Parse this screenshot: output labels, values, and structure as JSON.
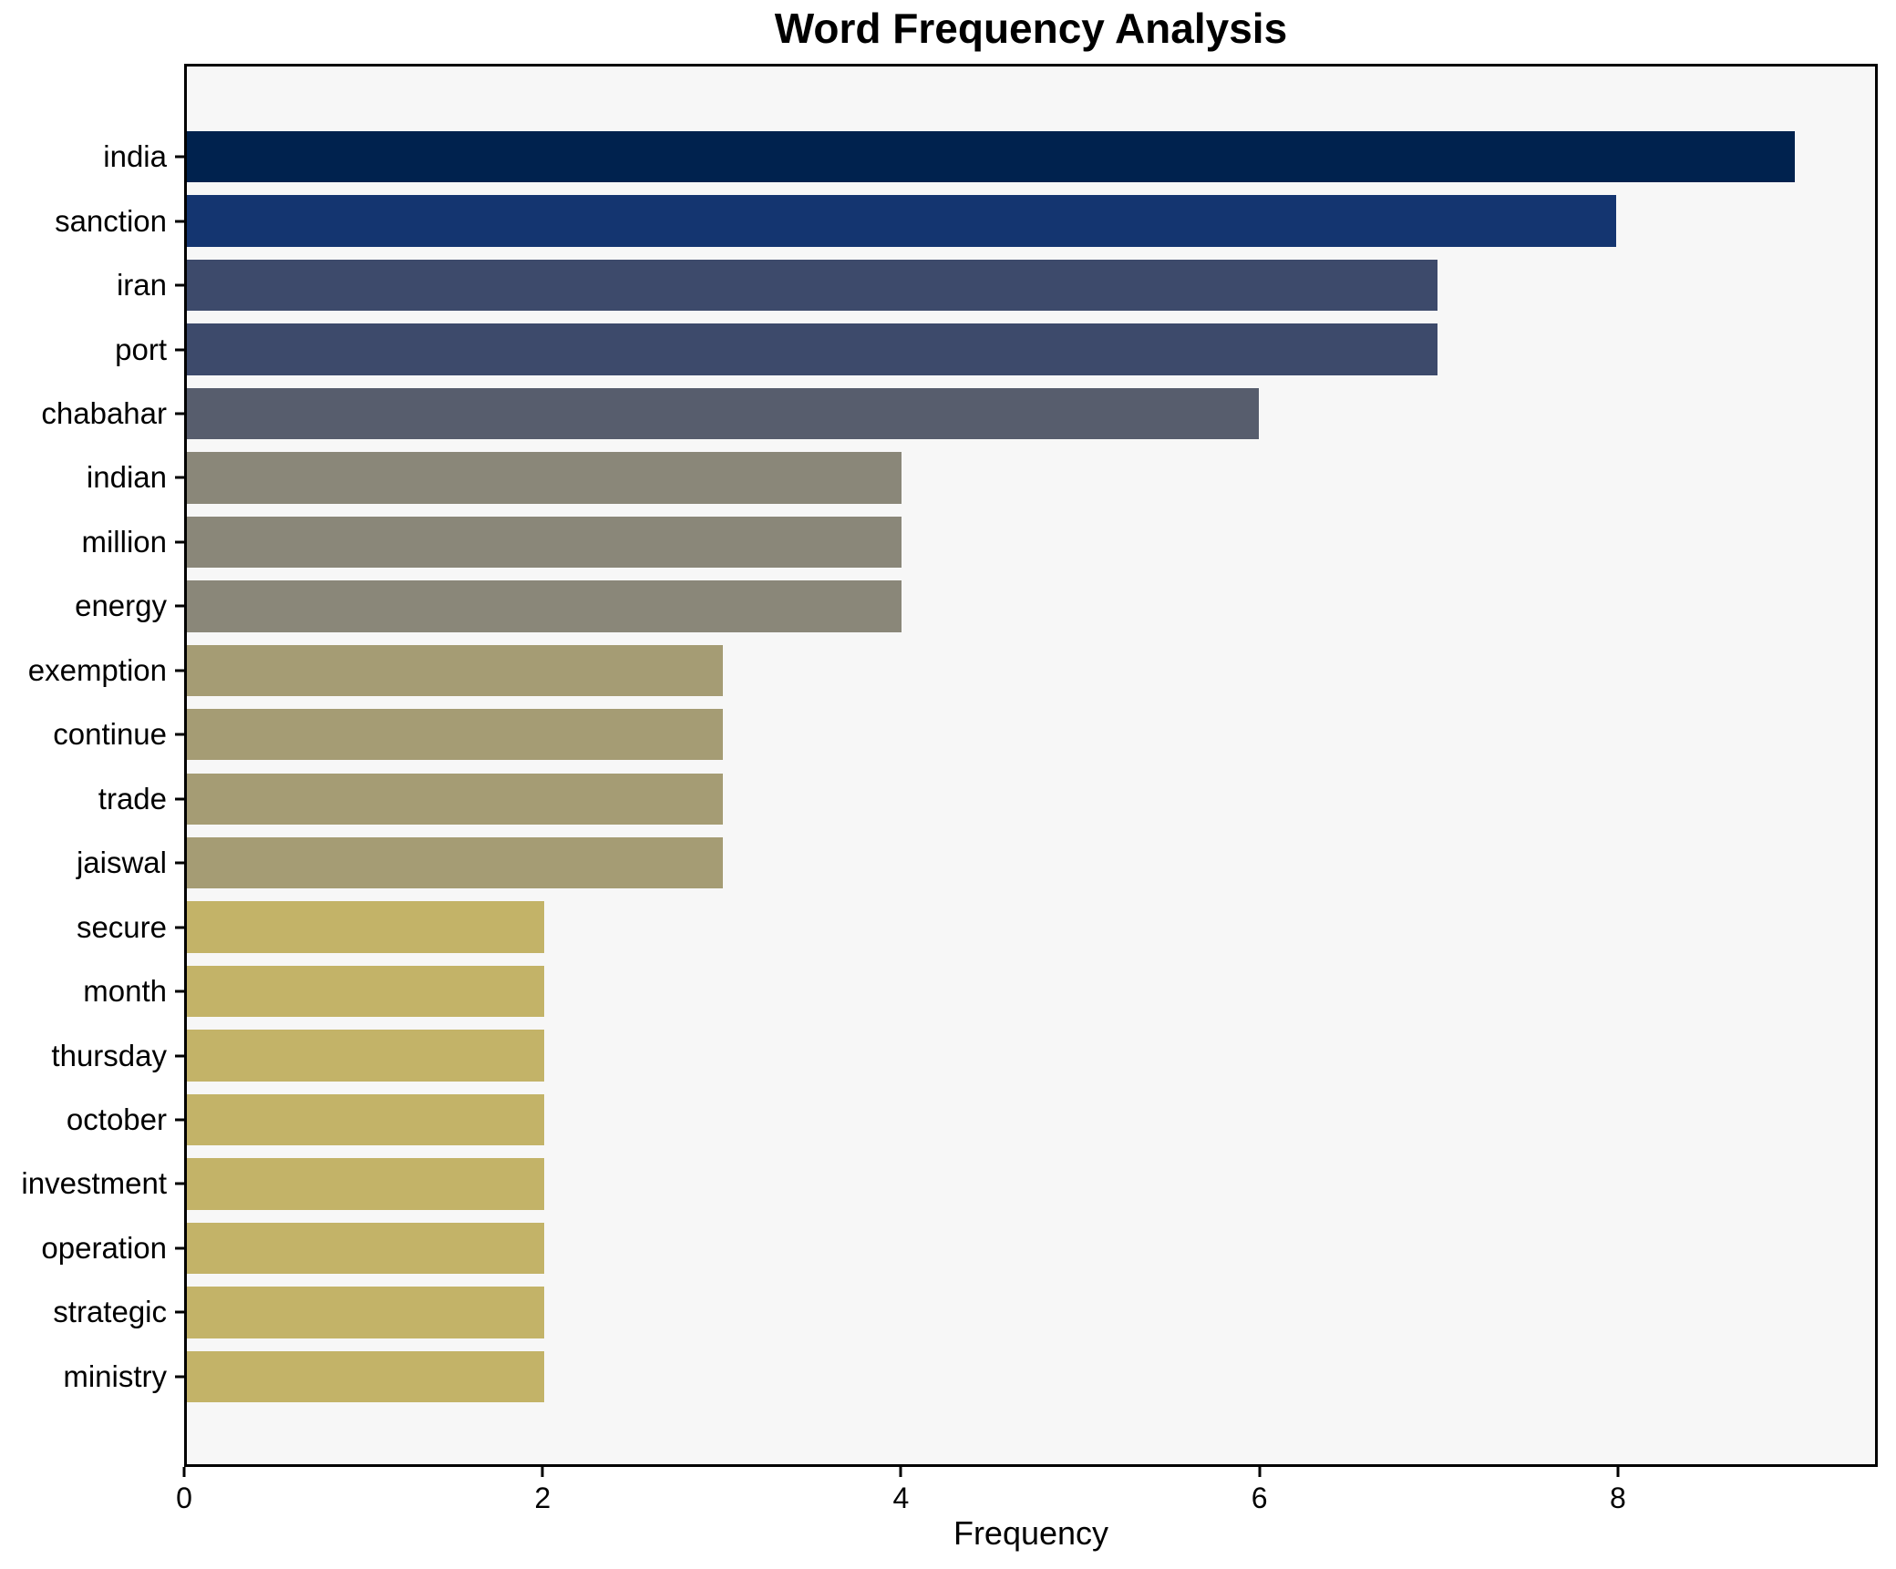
{
  "title": "Word Frequency Analysis",
  "xlabel": "Frequency",
  "colors": {
    "figure_bg": "#ffffff",
    "axes_bg": "#f7f7f7",
    "spine": "#000000",
    "text": "#000000"
  },
  "chart_data": {
    "type": "bar",
    "orientation": "horizontal",
    "title": "Word Frequency Analysis",
    "xlabel": "Frequency",
    "ylabel": "",
    "categories": [
      "india",
      "sanction",
      "iran",
      "port",
      "chabahar",
      "indian",
      "million",
      "energy",
      "exemption",
      "continue",
      "trade",
      "jaiswal",
      "secure",
      "month",
      "thursday",
      "october",
      "investment",
      "operation",
      "strategic",
      "ministry"
    ],
    "values": [
      9,
      8,
      7,
      7,
      6,
      4,
      4,
      4,
      3,
      3,
      3,
      3,
      2,
      2,
      2,
      2,
      2,
      2,
      2,
      2
    ],
    "bar_colors": [
      "#00224e",
      "#143570",
      "#3d4a6b",
      "#3d4a6b",
      "#575d6d",
      "#8a8779",
      "#8a8779",
      "#8a8779",
      "#a59c74",
      "#a59c74",
      "#a59c74",
      "#a59c74",
      "#c3b368",
      "#c3b368",
      "#c3b368",
      "#c3b368",
      "#c3b368",
      "#c3b368",
      "#c3b368",
      "#c3b368"
    ],
    "colormap": "cividis",
    "xlim": [
      0,
      9.45
    ],
    "x_ticks": [
      0,
      2,
      4,
      6,
      8
    ],
    "grid": false,
    "legend": null
  }
}
